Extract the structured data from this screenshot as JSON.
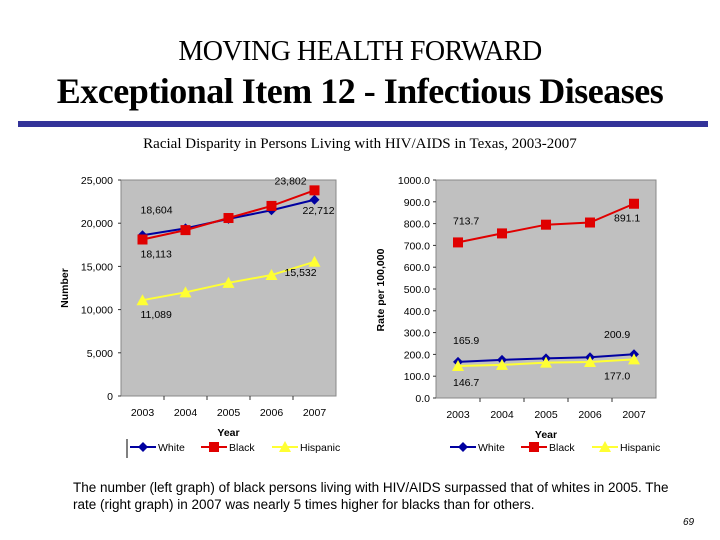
{
  "slide": {
    "header": "MOVING HEALTH FORWARD",
    "title": "Exceptional Item 12 - Infectious Diseases",
    "subtitle": "Racial Disparity in Persons Living with HIV/AIDS in Texas, 2003-2007",
    "caption": "The number (left graph) of black persons living with HIV/AIDS surpassed that of whites in 2005.  The rate (right graph) in 2007 was nearly 5 times higher for blacks than for others.",
    "page_number": "69",
    "accent_color": "#333399"
  },
  "chart_data": [
    {
      "type": "line",
      "title": "",
      "xlabel": "Year",
      "ylabel": "Number",
      "x": [
        "2003",
        "2004",
        "2005",
        "2006",
        "2007"
      ],
      "ylim": [
        0,
        25000
      ],
      "yticks": [
        "0",
        "5,000",
        "10,000",
        "15,000",
        "20,000",
        "25,000"
      ],
      "ytick_values": [
        0,
        5000,
        10000,
        15000,
        20000,
        25000
      ],
      "grid": false,
      "plot_background": "#c0c0c0",
      "legend": "bottom",
      "series": [
        {
          "name": "White",
          "color": "#0000a0",
          "marker": "diamond",
          "values": [
            18604,
            19400,
            20500,
            21500,
            22712
          ]
        },
        {
          "name": "Black",
          "color": "#e00000",
          "marker": "square",
          "values": [
            18113,
            19200,
            20600,
            22000,
            23802
          ]
        },
        {
          "name": "Hispanic",
          "color": "#ffff33",
          "marker": "triangle",
          "values": [
            11089,
            12000,
            13100,
            14000,
            15532
          ]
        }
      ],
      "annotations": [
        {
          "text": "18,604",
          "series": "White",
          "x": "2003",
          "position": "above"
        },
        {
          "text": "22,712",
          "series": "White",
          "x": "2007",
          "position": "below"
        },
        {
          "text": "18,113",
          "series": "Black",
          "x": "2003",
          "position": "below"
        },
        {
          "text": "23,802",
          "series": "Black",
          "x": "2007",
          "position": "left"
        },
        {
          "text": "11,089",
          "series": "Hispanic",
          "x": "2003",
          "position": "below"
        },
        {
          "text": "15,532",
          "series": "Hispanic",
          "x": "2007",
          "position": "below"
        }
      ]
    },
    {
      "type": "line",
      "title": "",
      "xlabel": "Year",
      "ylabel": "Rate per 100,000",
      "x": [
        "2003",
        "2004",
        "2005",
        "2006",
        "2007"
      ],
      "ylim": [
        0,
        1000
      ],
      "yticks": [
        "0.0",
        "100.0",
        "200.0",
        "300.0",
        "400.0",
        "500.0",
        "600.0",
        "700.0",
        "800.0",
        "900.0",
        "1000.0"
      ],
      "ytick_values": [
        0,
        100,
        200,
        300,
        400,
        500,
        600,
        700,
        800,
        900,
        1000
      ],
      "grid": false,
      "plot_background": "#c0c0c0",
      "legend": "bottom",
      "series": [
        {
          "name": "White",
          "color": "#0000a0",
          "marker": "diamond",
          "values": [
            165.9,
            175,
            182,
            187,
            200.9
          ]
        },
        {
          "name": "Black",
          "color": "#e00000",
          "marker": "square",
          "values": [
            713.7,
            755,
            795,
            805,
            891.1
          ]
        },
        {
          "name": "Hispanic",
          "color": "#ffff33",
          "marker": "triangle",
          "values": [
            146.7,
            152,
            162,
            165,
            177.0
          ]
        }
      ],
      "annotations": [
        {
          "text": "713.7",
          "series": "Black",
          "x": "2003",
          "position": "above"
        },
        {
          "text": "891.1",
          "series": "Black",
          "x": "2007",
          "position": "below"
        },
        {
          "text": "165.9",
          "series": "White",
          "x": "2003",
          "position": "above"
        },
        {
          "text": "200.9",
          "series": "White",
          "x": "2007",
          "position": "above"
        },
        {
          "text": "146.7",
          "series": "Hispanic",
          "x": "2003",
          "position": "below"
        },
        {
          "text": "177.0",
          "series": "Hispanic",
          "x": "2007",
          "position": "below"
        }
      ]
    }
  ]
}
